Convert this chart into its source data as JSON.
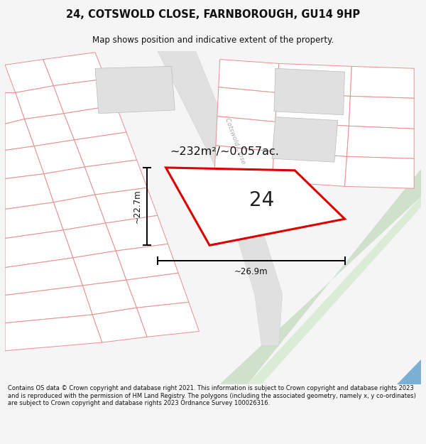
{
  "title": "24, COTSWOLD CLOSE, FARNBOROUGH, GU14 9HP",
  "subtitle": "Map shows position and indicative extent of the property.",
  "footer": "Contains OS data © Crown copyright and database right 2021. This information is subject to Crown copyright and database rights 2023 and is reproduced with the permission of HM Land Registry. The polygons (including the associated geometry, namely x, y co-ordinates) are subject to Crown copyright and database rights 2023 Ordnance Survey 100026316.",
  "area_label": "~232m²/~0.057ac.",
  "number_label": "24",
  "dim_h": "~22.7m",
  "dim_w": "~26.9m",
  "road_label": "Cotswold Close",
  "bg_color": "#f5f5f5",
  "map_bg": "#ffffff",
  "plot_color_red": "#dd0000",
  "pink_line": "#e89090",
  "gray_block": "#e0e0e0",
  "green_fill": "#cfe0cb",
  "blue_fill": "#7ab0d4",
  "title_color": "#111111"
}
